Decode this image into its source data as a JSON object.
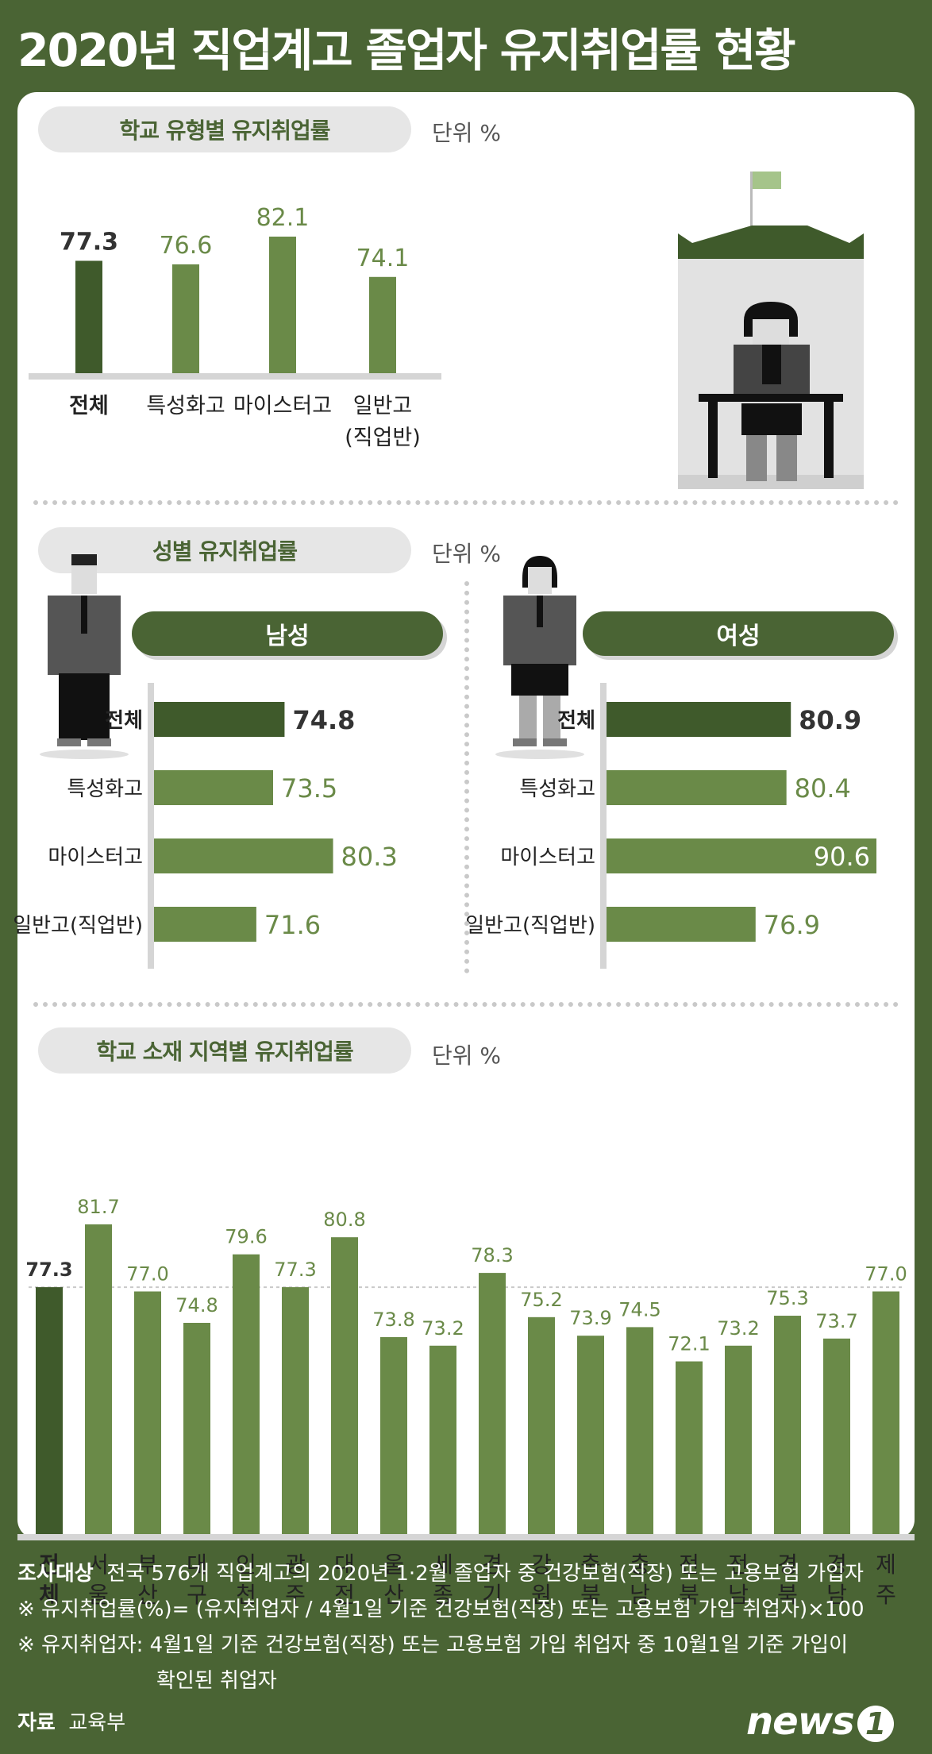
{
  "title": "2020년 직업계고 졸업자 유지취업률 현황",
  "colors": {
    "dark": "#3f5a2b",
    "mid": "#6a8a48",
    "bg": "#4a6434",
    "light_flag": "#a5c48a"
  },
  "sections": {
    "school_type": {
      "heading": "학교 유형별 유지취업률",
      "unit": "단위  %"
    },
    "gender": {
      "heading": "성별 유지취업률",
      "unit": "단위  %",
      "male_label": "남성",
      "female_label": "여성"
    },
    "region": {
      "heading": "학교 소재 지역별 유지취업률",
      "unit": "단위  %"
    }
  },
  "chart_data": [
    {
      "type": "bar",
      "title": "학교 유형별 유지취업률",
      "categories": [
        "전체",
        "특성화고",
        "마이스터고",
        "일반고\n(직업반)"
      ],
      "values": [
        77.3,
        76.6,
        82.1,
        74.1
      ],
      "value_labels": [
        "77.3",
        "76.6",
        "82.1",
        "74.1"
      ],
      "unit": "%"
    },
    {
      "type": "bar",
      "orientation": "horizontal",
      "title": "남성",
      "categories": [
        "전체",
        "특성화고",
        "마이스터고",
        "일반고(직업반)"
      ],
      "values": [
        74.8,
        73.5,
        80.3,
        71.6
      ],
      "value_labels": [
        "74.8",
        "73.5",
        "80.3",
        "71.6"
      ]
    },
    {
      "type": "bar",
      "orientation": "horizontal",
      "title": "여성",
      "categories": [
        "전체",
        "특성화고",
        "마이스터고",
        "일반고(직업반)"
      ],
      "values": [
        80.9,
        80.4,
        90.6,
        76.9
      ],
      "value_labels": [
        "80.9",
        "80.4",
        "90.6",
        "76.9"
      ]
    },
    {
      "type": "bar",
      "title": "학교 소재 지역별 유지취업률",
      "categories": [
        "전\n체",
        "서\n울",
        "부\n산",
        "대\n구",
        "인\n천",
        "광\n주",
        "대\n전",
        "울\n산",
        "세\n종",
        "경\n기",
        "강\n원",
        "충\n북",
        "충\n남",
        "전\n북",
        "전\n남",
        "경\n북",
        "경\n남",
        "제\n주"
      ],
      "values": [
        77.3,
        81.7,
        77.0,
        74.8,
        79.6,
        77.3,
        80.8,
        73.8,
        73.2,
        78.3,
        75.2,
        73.9,
        74.5,
        72.1,
        73.2,
        75.3,
        73.7,
        77.0
      ],
      "value_labels": [
        "77.3",
        "81.7",
        "77.0",
        "74.8",
        "79.6",
        "77.3",
        "80.8",
        "73.8",
        "73.2",
        "78.3",
        "75.2",
        "73.9",
        "74.5",
        "72.1",
        "73.2",
        "75.3",
        "73.7",
        "77.0"
      ],
      "reference_line": 77.3
    }
  ],
  "footer": {
    "target_label": "조사대상",
    "target_text": "전국 576개 직업계고의 2020년 1·2월 졸업자 중 건강보험(직장) 또는 고용보험 가입자",
    "note1": "※ 유지취업률(%)= (유지취업자 / 4월1일 기준 건강보험(직장) 또는 고용보험 가입 취업자)×100",
    "note2_a": "※ 유지취업자: 4월1일 기준 건강보험(직장) 또는 고용보험 가입 취업자 중 10월1일 기준 가입이",
    "note2_b": "확인된 취업자",
    "source_label": "자료",
    "source_text": "교육부"
  },
  "logo": {
    "text": "news",
    "mark": "1"
  }
}
